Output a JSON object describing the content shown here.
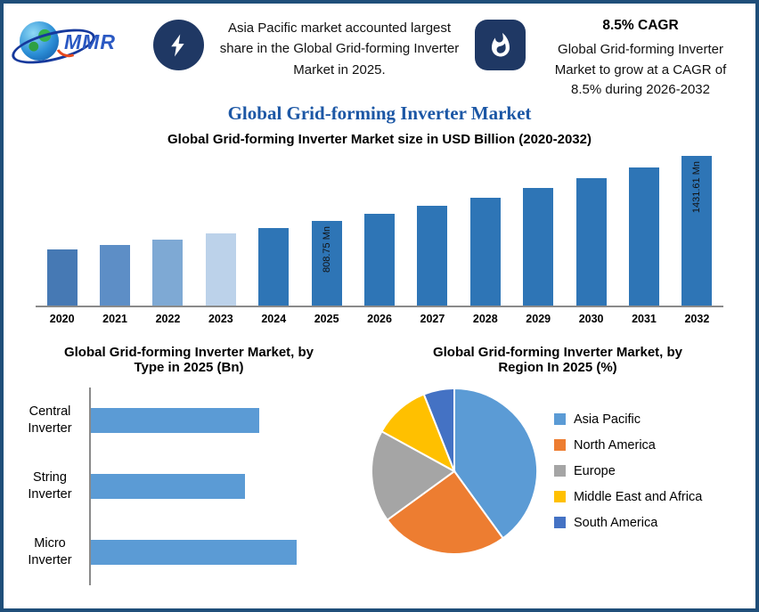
{
  "page": {
    "border_color": "#1F4E79",
    "title_color": "#1C57A5",
    "badge_color": "#1F3864"
  },
  "header": {
    "logo_text": "MMR",
    "left_icon": "lightning-icon",
    "left_highlight": "Asia Pacific market accounted largest share in the Global Grid-forming Inverter Market in 2025.",
    "right_icon": "flame-icon",
    "cagr_title": "8.5% CAGR",
    "right_highlight": "Global Grid-forming Inverter Market to grow at a CAGR of 8.5% during 2026-2032"
  },
  "title": "Global Grid-forming Inverter Market",
  "chart_data": [
    {
      "type": "bar",
      "title": "Global Grid-forming Inverter Market size in USD Billion (2020-2032)",
      "categories": [
        "2020",
        "2021",
        "2022",
        "2023",
        "2024",
        "2025",
        "2026",
        "2027",
        "2028",
        "2029",
        "2030",
        "2031",
        "2032"
      ],
      "values": [
        537.9,
        583.6,
        633.2,
        687.0,
        745.4,
        808.75,
        877.5,
        952.1,
        1033.0,
        1120.8,
        1216.1,
        1319.5,
        1431.61
      ],
      "unit": "Mn",
      "data_labels": {
        "2025": "808.75 Mn",
        "2032": "1431.61 Mn"
      },
      "bar_colors": [
        "#4679B4",
        "#5D8EC6",
        "#7EA9D4",
        "#BCD2EA",
        "#2E75B6",
        "#2E75B6",
        "#2E75B6",
        "#2E75B6",
        "#2E75B6",
        "#2E75B6",
        "#2E75B6",
        "#2E75B6",
        "#2E75B6"
      ],
      "ylim": [
        0,
        1500
      ],
      "grid": false,
      "legend_position": "none"
    },
    {
      "type": "bar",
      "orientation": "horizontal",
      "title": "Global Grid-forming Inverter Market, by Type in 2025 (Bn)",
      "categories": [
        "Central Inverter",
        "String Inverter",
        "Micro Inverter"
      ],
      "values": [
        0.82,
        0.75,
        1.0
      ],
      "values_are_relative": true,
      "value_labels_shown": false,
      "bar_color": "#5B9BD5",
      "grid": false
    },
    {
      "type": "pie",
      "title": "Global Grid-forming Inverter Market, by Region In 2025 (%)",
      "labels": [
        "Asia Pacific",
        "North America",
        "Europe",
        "Middle East and Africa",
        "South America"
      ],
      "values": [
        40,
        25,
        18,
        11,
        6
      ],
      "colors": [
        "#5B9BD5",
        "#ED7D31",
        "#A5A5A5",
        "#FFC000",
        "#4472C4"
      ],
      "legend_position": "right"
    }
  ]
}
